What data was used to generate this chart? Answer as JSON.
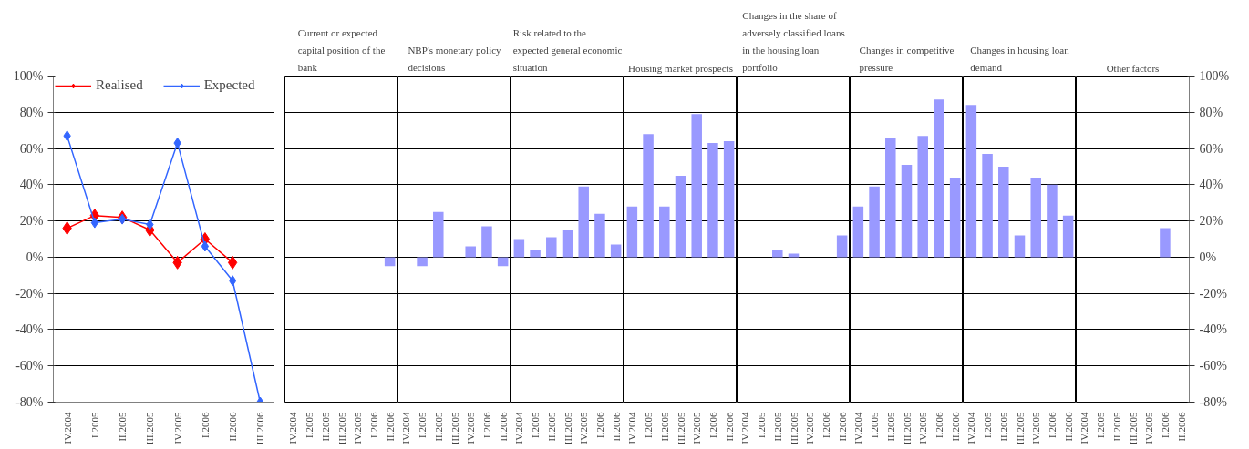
{
  "chart_data": [
    {
      "type": "line",
      "categories": [
        "IV.2004",
        "I.2005",
        "II.2005",
        "III.2005",
        "IV.2005",
        "I.2006",
        "II.2006",
        "III.2006"
      ],
      "series": [
        {
          "name": "Realised",
          "color": "#ff0000",
          "values": [
            16,
            23,
            22,
            15,
            -3,
            10,
            -3,
            null
          ]
        },
        {
          "name": "Expected",
          "color": "#3366ff",
          "values": [
            67,
            19,
            21,
            18,
            63,
            6,
            -13,
            -80
          ]
        }
      ],
      "ylim": [
        -80,
        100
      ],
      "yticks": [
        {
          "value": -80,
          "label": "-80%"
        },
        {
          "value": -60,
          "label": "-60%"
        },
        {
          "value": -40,
          "label": "-40%"
        },
        {
          "value": -20,
          "label": "-20%"
        },
        {
          "value": 0,
          "label": "0%"
        },
        {
          "value": 20,
          "label": "20%"
        },
        {
          "value": 40,
          "label": "40%"
        },
        {
          "value": 60,
          "label": "60%"
        },
        {
          "value": 80,
          "label": "80%"
        },
        {
          "value": 100,
          "label": "100%"
        }
      ],
      "grid": "y",
      "legend": "top left",
      "marker": "diamond"
    },
    {
      "type": "bar",
      "title": "Current or expected capital position of the bank",
      "categories": [
        "IV.2004",
        "I.2005",
        "II.2005",
        "III.2005",
        "IV.2005",
        "I.2006",
        "II.2006"
      ],
      "series": [
        {
          "color": "#9999ff",
          "values": [
            0,
            0,
            0,
            0,
            0,
            0,
            -5
          ]
        }
      ],
      "ylim": [
        -80,
        100
      ],
      "yticks": [
        -80,
        -60,
        -40,
        -20,
        0,
        20,
        40,
        60,
        80,
        100
      ],
      "grid": "y",
      "tick_labels": "x"
    },
    {
      "type": "bar",
      "title": "NBP's monetary policy decisions",
      "categories": [
        "IV.2004",
        "I.2005",
        "II.2005",
        "III.2005",
        "IV.2005",
        "I.2006",
        "II.2006"
      ],
      "series": [
        {
          "color": "#9999ff",
          "values": [
            0,
            -5,
            25,
            0,
            6,
            17,
            -5
          ]
        }
      ],
      "ylim": [
        -80,
        100
      ],
      "yticks": [
        -80,
        -60,
        -40,
        -20,
        0,
        20,
        40,
        60,
        80,
        100
      ],
      "grid": "y",
      "tick_labels": "x"
    },
    {
      "type": "bar",
      "title": "Risk related to the expected general economic situation",
      "categories": [
        "IV.2004",
        "I.2005",
        "II.2005",
        "III.2005",
        "IV.2005",
        "I.2006",
        "II.2006"
      ],
      "series": [
        {
          "color": "#9999ff",
          "values": [
            10,
            4,
            11,
            15,
            39,
            24,
            7
          ]
        }
      ],
      "ylim": [
        -80,
        100
      ],
      "yticks": [
        -80,
        -60,
        -40,
        -20,
        0,
        20,
        40,
        60,
        80,
        100
      ],
      "grid": "y",
      "tick_labels": "x"
    },
    {
      "type": "bar",
      "title": "Housing market prospects",
      "categories": [
        "IV.2004",
        "I.2005",
        "II.2005",
        "III.2005",
        "IV.2005",
        "I.2006",
        "II.2006"
      ],
      "series": [
        {
          "color": "#9999ff",
          "values": [
            28,
            68,
            28,
            45,
            79,
            63,
            64
          ]
        }
      ],
      "ylim": [
        -80,
        100
      ],
      "yticks": [
        -80,
        -60,
        -40,
        -20,
        0,
        20,
        40,
        60,
        80,
        100
      ],
      "grid": "y",
      "tick_labels": "x"
    },
    {
      "type": "bar",
      "title": "Changes in the share of adversely classified loans in the housing loan portfolio",
      "categories": [
        "IV.2004",
        "I.2005",
        "II.2005",
        "III.2005",
        "IV.2005",
        "I.2006",
        "II.2006"
      ],
      "series": [
        {
          "color": "#9999ff",
          "values": [
            0,
            0,
            4,
            2,
            0,
            0,
            12
          ]
        }
      ],
      "ylim": [
        -80,
        100
      ],
      "yticks": [
        -80,
        -60,
        -40,
        -20,
        0,
        20,
        40,
        60,
        80,
        100
      ],
      "grid": "y",
      "tick_labels": "x"
    },
    {
      "type": "bar",
      "title": "Changes in competitive pressure",
      "categories": [
        "IV.2004",
        "I.2005",
        "II.2005",
        "III.2005",
        "IV.2005",
        "I.2006",
        "II.2006"
      ],
      "series": [
        {
          "color": "#9999ff",
          "values": [
            28,
            39,
            66,
            51,
            67,
            87,
            44
          ]
        }
      ],
      "ylim": [
        -80,
        100
      ],
      "yticks": [
        -80,
        -60,
        -40,
        -20,
        0,
        20,
        40,
        60,
        80,
        100
      ],
      "grid": "y",
      "tick_labels": "x"
    },
    {
      "type": "bar",
      "title": "Changes in housing loan demand",
      "categories": [
        "IV.2004",
        "I.2005",
        "II.2005",
        "III.2005",
        "IV.2005",
        "I.2006",
        "II.2006"
      ],
      "series": [
        {
          "color": "#9999ff",
          "values": [
            84,
            57,
            50,
            12,
            44,
            40,
            23
          ]
        }
      ],
      "ylim": [
        -80,
        100
      ],
      "yticks": [
        -80,
        -60,
        -40,
        -20,
        0,
        20,
        40,
        60,
        80,
        100
      ],
      "grid": "y",
      "tick_labels": "x"
    },
    {
      "type": "bar",
      "title": "Other factors",
      "categories": [
        "IV.2004",
        "I.2005",
        "II.2005",
        "III.2005",
        "IV.2005",
        "I.2006",
        "II.2006"
      ],
      "series": [
        {
          "color": "#9999ff",
          "values": [
            0,
            0,
            0,
            0,
            0,
            16,
            0
          ],
          "axis": "y2"
        }
      ],
      "y2lim": [
        -80,
        100
      ],
      "y2ticks": [
        {
          "value": -80,
          "label": "-80%"
        },
        {
          "value": -60,
          "label": "-60%"
        },
        {
          "value": -40,
          "label": "-40%"
        },
        {
          "value": -20,
          "label": "-20%"
        },
        {
          "value": 0,
          "label": "0%"
        },
        {
          "value": 20,
          "label": "20%"
        },
        {
          "value": 40,
          "label": "40%"
        },
        {
          "value": 60,
          "label": "60%"
        },
        {
          "value": 80,
          "label": "80%"
        },
        {
          "value": 100,
          "label": "100%"
        }
      ],
      "grid": "y"
    }
  ]
}
